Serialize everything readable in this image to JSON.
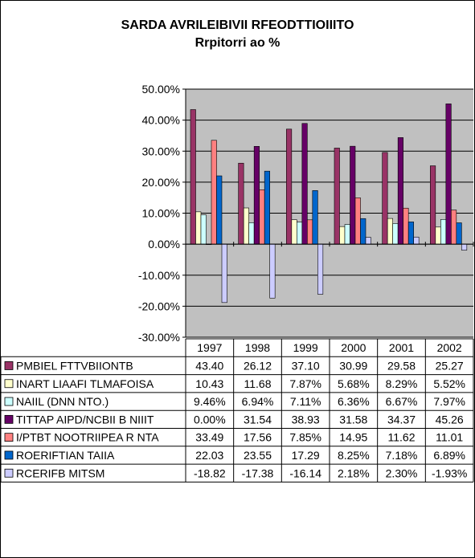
{
  "title": "SARDA AVRILEIBIVII RFEODTTIOIIITO",
  "subtitle": "Rrpitorri ao %",
  "chart_data": {
    "type": "bar",
    "title": "SARDA AVRILEIBIVII RFEODTTIOIIITO",
    "subtitle": "Rrpitorri ao %",
    "xlabel": "",
    "ylabel": "",
    "ylim": [
      -30,
      50
    ],
    "yticks": [
      -30,
      -20,
      -10,
      0,
      10,
      20,
      30,
      40,
      50
    ],
    "ytick_labels": [
      "-30.00%",
      "-20.00%",
      "-10.00%",
      "0.00%",
      "10.00%",
      "20.00%",
      "30.00%",
      "40.00%",
      "50.00%"
    ],
    "grid": true,
    "legend": "table-below",
    "categories": [
      "1997",
      "1998",
      "1999",
      "2000",
      "2001",
      "2002"
    ],
    "series": [
      {
        "name": "PMBIEL FTTVBIIONTB",
        "color": "#993366",
        "values": [
          43.4,
          26.12,
          37.1,
          30.99,
          29.58,
          25.27
        ],
        "labels": [
          "43.40",
          "26.12",
          "37.10",
          "30.99",
          "29.58",
          "25.27"
        ]
      },
      {
        "name": "INART LIAAFI TLMAFOISA",
        "color": "#ffffcc",
        "values": [
          10.43,
          11.68,
          7.87,
          5.68,
          8.29,
          5.52
        ],
        "labels": [
          "10.43",
          "11.68",
          "7.87%",
          "5.68%",
          "8.29%",
          "5.52%"
        ]
      },
      {
        "name": "NAIIL (DNN NTO.)",
        "color": "#ccffff",
        "values": [
          9.46,
          6.94,
          7.11,
          6.36,
          6.67,
          7.97
        ],
        "labels": [
          "9.46%",
          "6.94%",
          "7.11%",
          "6.36%",
          "6.67%",
          "7.97%"
        ]
      },
      {
        "name": "TITTAP AIPD/NCBII B NIIIT",
        "color": "#660066",
        "values": [
          0.0,
          31.54,
          38.93,
          31.58,
          34.37,
          45.26
        ],
        "labels": [
          "0.00%",
          "31.54",
          "38.93",
          "31.58",
          "34.37",
          "45.26"
        ]
      },
      {
        "name": "I/PTBT NOOTRIIPEA R NTA",
        "color": "#ff8080",
        "values": [
          33.49,
          17.56,
          7.85,
          14.95,
          11.62,
          11.01
        ],
        "labels": [
          "33.49",
          "17.56",
          "7.85%",
          "14.95",
          "11.62",
          "11.01"
        ]
      },
      {
        "name": "ROERIFTIAN TAIIA",
        "color": "#0066cc",
        "values": [
          22.03,
          23.55,
          17.29,
          8.25,
          7.18,
          6.89
        ],
        "labels": [
          "22.03",
          "23.55",
          "17.29",
          "8.25%",
          "7.18%",
          "6.89%"
        ]
      },
      {
        "name": "RCERIFB MITSM",
        "color": "#ccccff",
        "values": [
          -18.82,
          -17.38,
          -16.14,
          2.18,
          2.3,
          -1.93
        ],
        "labels": [
          "-18.82",
          "-17.38",
          "-16.14",
          "2.18%",
          "2.30%",
          "-1.93%"
        ]
      }
    ]
  }
}
